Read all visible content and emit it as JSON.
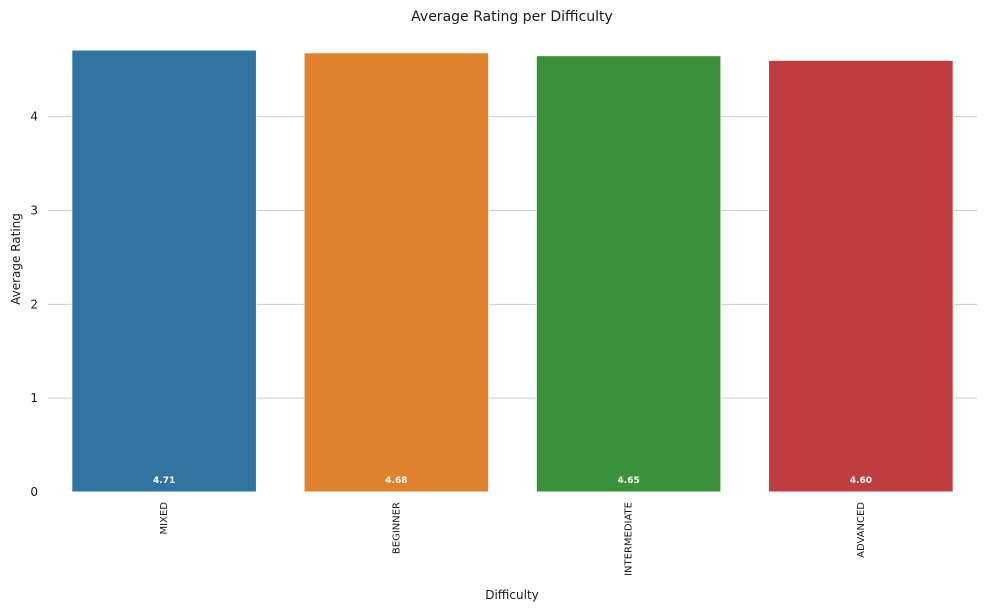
{
  "chart_data": {
    "type": "bar",
    "title": "Average Rating per Difficulty",
    "xlabel": "Difficulty",
    "ylabel": "Average Rating",
    "categories": [
      "MIXED",
      "BEGINNER",
      "INTERMEDIATE",
      "ADVANCED"
    ],
    "values": [
      4.71,
      4.68,
      4.65,
      4.6
    ],
    "value_labels": [
      "4.71",
      "4.68",
      "4.65",
      "4.60"
    ],
    "colors": [
      "#3274a1",
      "#e1812c",
      "#3a923a",
      "#c03d3e"
    ],
    "ylim": [
      0,
      4.71
    ],
    "yticks": [
      0,
      1,
      2,
      3,
      4
    ],
    "ytick_labels": [
      "0",
      "1",
      "2",
      "3",
      "4"
    ],
    "grid": "horizontal",
    "legend": false
  }
}
